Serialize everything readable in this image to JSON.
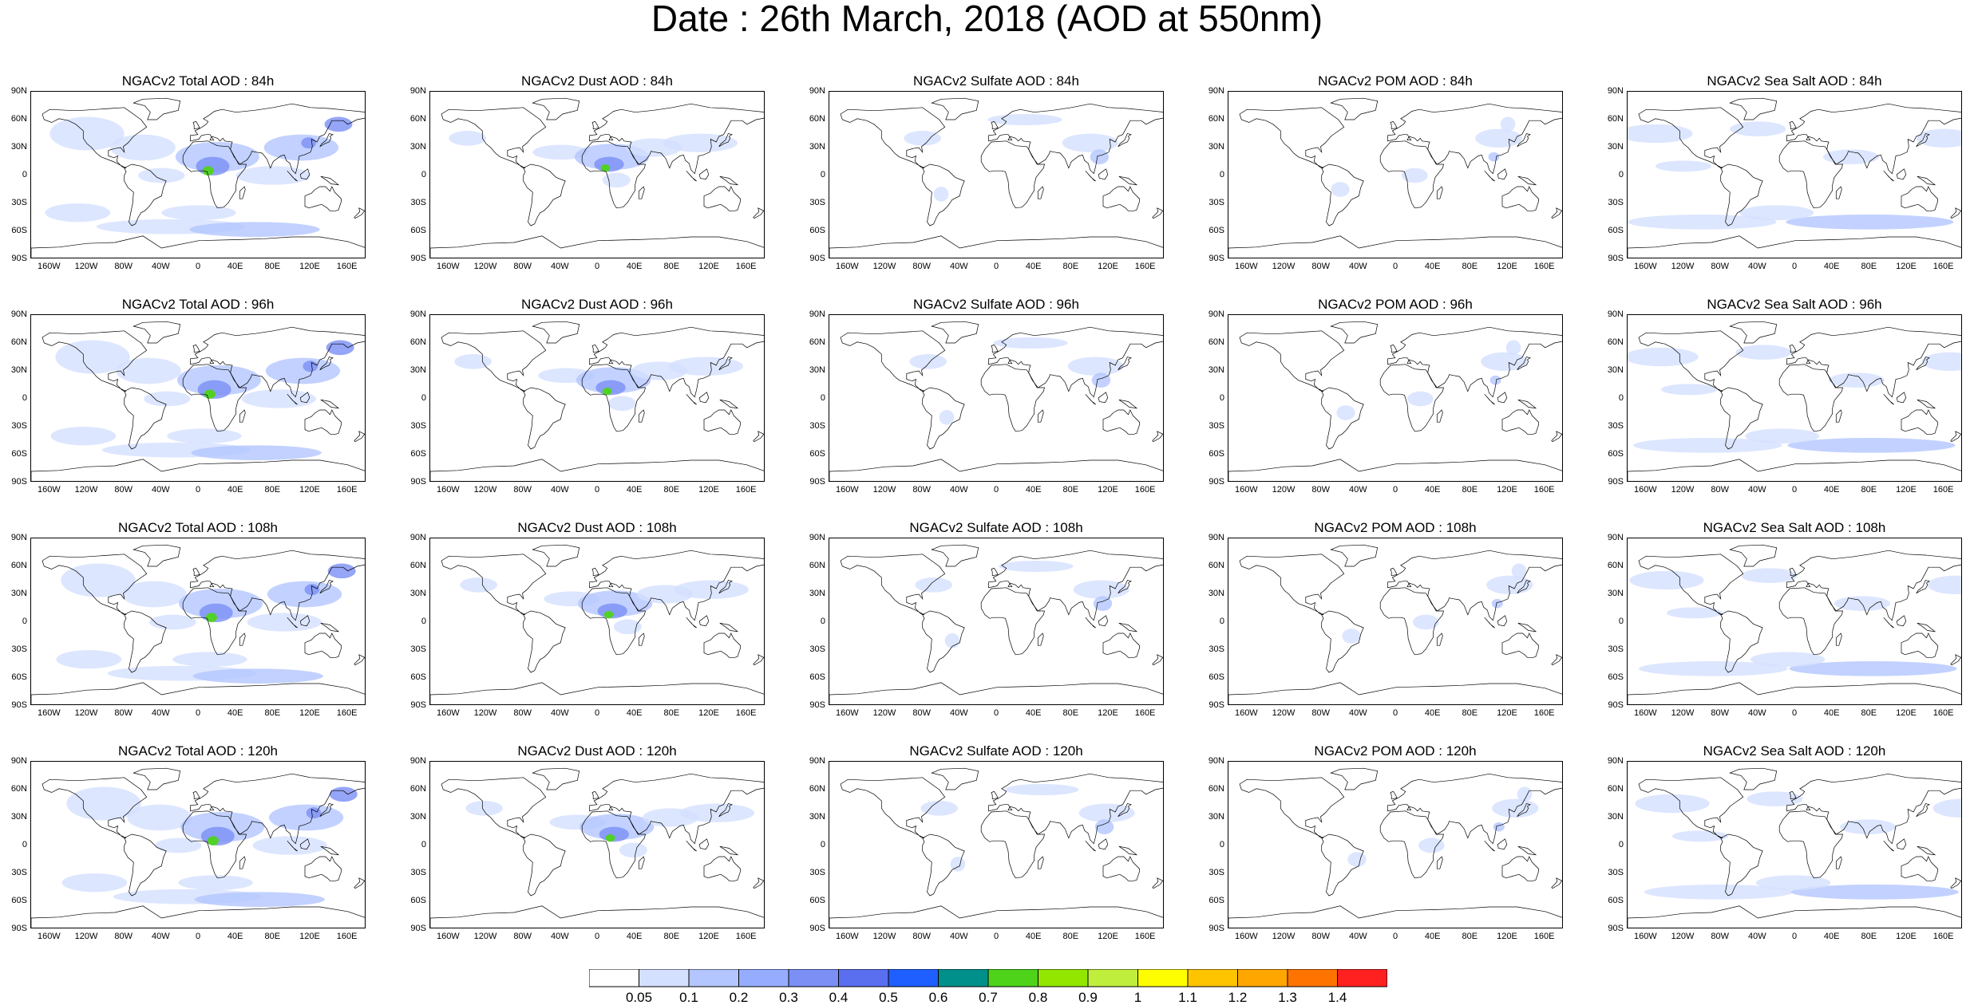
{
  "title": "Date : 26th March, 2018 (AOD at 550nm)",
  "lat_labels": [
    "90N",
    "60N",
    "30N",
    "0",
    "30S",
    "60S",
    "90S"
  ],
  "lon_labels": [
    "160W",
    "120W",
    "80W",
    "40W",
    "0",
    "40E",
    "80E",
    "120E",
    "160E"
  ],
  "panels": [
    [
      "NGACv2 Total AOD : 84h",
      "NGACv2 Dust AOD : 84h",
      "NGACv2 Sulfate AOD : 84h",
      "NGACv2 POM AOD : 84h",
      "NGACv2 Sea Salt AOD : 84h"
    ],
    [
      "NGACv2 Total AOD : 96h",
      "NGACv2 Dust AOD : 96h",
      "NGACv2 Sulfate AOD : 96h",
      "NGACv2 POM AOD : 96h",
      "NGACv2 Sea Salt AOD : 96h"
    ],
    [
      "NGACv2 Total AOD : 108h",
      "NGACv2 Dust AOD : 108h",
      "NGACv2 Sulfate AOD : 108h",
      "NGACv2 POM AOD : 108h",
      "NGACv2 Sea Salt AOD : 108h"
    ],
    [
      "NGACv2 Total AOD : 120h",
      "NGACv2 Dust AOD : 120h",
      "NGACv2 Sulfate AOD : 120h",
      "NGACv2 POM AOD : 120h",
      "NGACv2 Sea Salt  AOD : 120h"
    ]
  ],
  "colorbar": {
    "labels": [
      "0.05",
      "0.1",
      "0.2",
      "0.3",
      "0.4",
      "0.5",
      "0.6",
      "0.7",
      "0.8",
      "0.9",
      "1",
      "1.1",
      "1.2",
      "1.3",
      "1.4"
    ],
    "colors": [
      "#ffffff",
      "#d4e0ff",
      "#b3c6ff",
      "#96adff",
      "#7b8ff5",
      "#5a6ef0",
      "#1f5fff",
      "#00908c",
      "#4ed31a",
      "#92e600",
      "#c0ee3d",
      "#fffe00",
      "#ffc400",
      "#ffa600",
      "#ff7400",
      "#ff2020"
    ]
  },
  "colors": {
    "land_outline": "#000000",
    "aod_low": "#d4e0ff",
    "aod_mid": "#b3c6ff",
    "aod_high": "#7b8ff5",
    "aod_peak": "#4ed31a"
  }
}
